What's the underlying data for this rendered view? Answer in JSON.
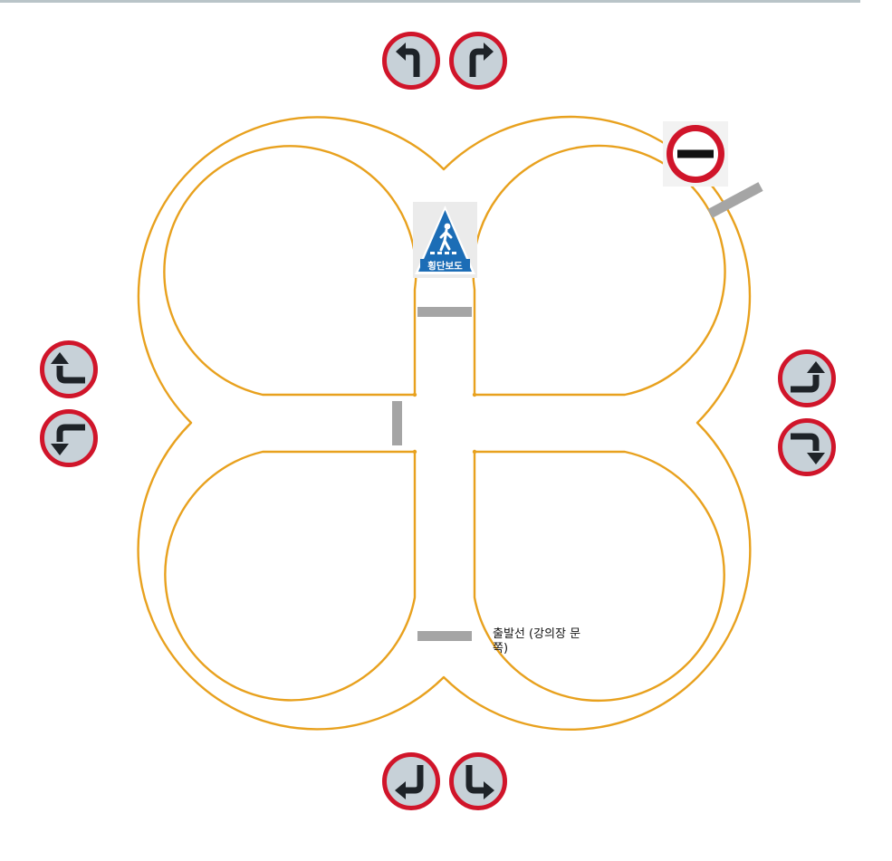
{
  "colors": {
    "track": "#e8a11e",
    "sign_ring": "#d0152a",
    "sign_fill": "#c7d1d8",
    "arrow": "#1e2328",
    "marker": "#a5a5a5",
    "crosswalk_blue": "#1c6db6"
  },
  "signs": {
    "top": [
      "turn-left-arrow-icon",
      "turn-right-arrow-icon"
    ],
    "left": [
      "up-then-left-arrow-icon",
      "down-then-left-arrow-icon"
    ],
    "right": [
      "up-then-right-arrow-icon",
      "down-then-right-arrow-icon"
    ],
    "bottom": [
      "return-down-left-arrow-icon",
      "down-then-right-arrow-icon"
    ],
    "no_entry": "no-entry-icon",
    "crosswalk": {
      "icon": "pedestrian-crosswalk-icon",
      "label": "횡단보도"
    }
  },
  "start_line": {
    "label": "출발선 (강의장 문쪽)"
  }
}
